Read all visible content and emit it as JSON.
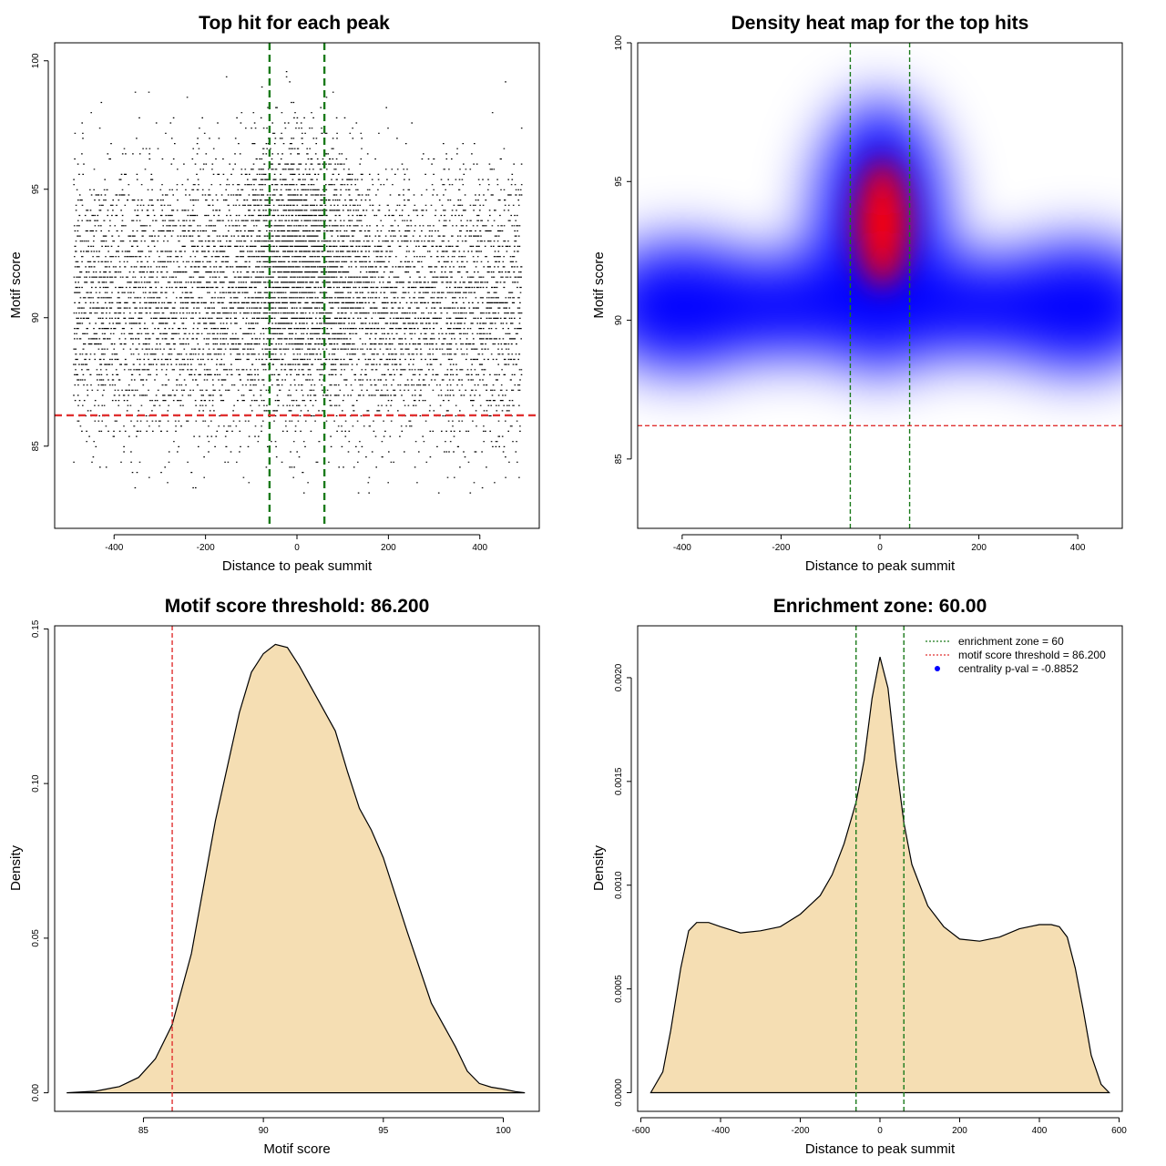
{
  "chart_data": [
    {
      "type": "scatter",
      "title": "Top hit for each peak",
      "xlabel": "Distance to peak summit",
      "ylabel": "Motif score",
      "xlim": [
        -530,
        530
      ],
      "ylim": [
        81.8,
        100.7
      ],
      "xticks": [
        -400,
        -200,
        0,
        200,
        400
      ],
      "yticks": [
        85,
        90,
        95,
        100
      ],
      "description_point_cloud": {
        "x_range": [
          -490,
          490
        ],
        "y_range": [
          82.9,
          100
        ],
        "dense_center": {
          "x": 0,
          "y": 92.7
        },
        "band_center_y": 90.5
      },
      "hlines": [
        {
          "y": 86.2,
          "color": "#e03030",
          "style": "dashed"
        }
      ],
      "vlines": [
        {
          "x": -60,
          "color": "#1a7a1a",
          "style": "dashed"
        },
        {
          "x": 60,
          "color": "#1a7a1a",
          "style": "dashed"
        }
      ]
    },
    {
      "type": "heatmap",
      "title": "Density heat map for the top hits",
      "xlabel": "Distance to peak summit",
      "ylabel": "Motif score",
      "xlim": [
        -490,
        490
      ],
      "ylim": [
        82.5,
        100
      ],
      "xticks": [
        -400,
        -200,
        0,
        200,
        400
      ],
      "yticks": [
        85,
        90,
        95,
        100
      ],
      "colors": [
        "#ffffff",
        "#0000ff",
        "#ff0000"
      ],
      "density_peaks": [
        {
          "x": 5,
          "y": 93.5,
          "level": "high"
        },
        {
          "x": -400,
          "y": 90.5,
          "level": "medium"
        },
        {
          "x": 400,
          "y": 90.5,
          "level": "medium"
        }
      ],
      "hlines": [
        {
          "y": 86.2,
          "color": "#e03030",
          "style": "dashed"
        }
      ],
      "vlines": [
        {
          "x": -60,
          "color": "#1a7a1a",
          "style": "dashed"
        },
        {
          "x": 60,
          "color": "#1a7a1a",
          "style": "dashed"
        }
      ]
    },
    {
      "type": "area",
      "title": "Motif score threshold: 86.200",
      "xlabel": "Motif score",
      "ylabel": "Density",
      "xlim": [
        81.3,
        101.5
      ],
      "ylim": [
        -0.006,
        0.151
      ],
      "xticks": [
        85,
        90,
        95,
        100
      ],
      "yticks": [
        0.0,
        0.05,
        0.1,
        0.15
      ],
      "ytick_labels": [
        "0.00",
        "0.05",
        "0.10",
        "0.15"
      ],
      "x": [
        81.8,
        83,
        84,
        84.8,
        85.5,
        86.2,
        87,
        88,
        89,
        89.5,
        90,
        90.5,
        91,
        91.5,
        92,
        93,
        93.5,
        94,
        94.5,
        95,
        96,
        97,
        98,
        98.5,
        99,
        99.5,
        100,
        100.5,
        100.9
      ],
      "y": [
        0.0,
        0.0005,
        0.002,
        0.005,
        0.011,
        0.022,
        0.045,
        0.088,
        0.123,
        0.136,
        0.142,
        0.145,
        0.144,
        0.138,
        0.131,
        0.117,
        0.104,
        0.092,
        0.085,
        0.076,
        0.052,
        0.029,
        0.015,
        0.007,
        0.003,
        0.0018,
        0.0012,
        0.0004,
        0.0
      ],
      "fill": "#f5deb3",
      "vlines": [
        {
          "x": 86.2,
          "color": "#e03030",
          "style": "dashed"
        }
      ]
    },
    {
      "type": "area",
      "title": "Enrichment zone: 60.00",
      "xlabel": "Distance to peak summit",
      "ylabel": "Density",
      "xlim": [
        -608,
        608
      ],
      "ylim": [
        -9e-05,
        0.00225
      ],
      "xticks": [
        -600,
        -400,
        -200,
        0,
        200,
        400,
        600
      ],
      "yticks": [
        0.0,
        0.0005,
        0.001,
        0.0015,
        0.002
      ],
      "ytick_labels": [
        "0.0000",
        "0.0005",
        "0.0010",
        "0.0015",
        "0.0020"
      ],
      "x": [
        -575,
        -545,
        -525,
        -500,
        -480,
        -460,
        -430,
        -400,
        -350,
        -300,
        -250,
        -200,
        -150,
        -120,
        -90,
        -60,
        -40,
        -20,
        0,
        20,
        40,
        60,
        80,
        120,
        160,
        200,
        250,
        300,
        350,
        400,
        430,
        450,
        470,
        490,
        510,
        530,
        555,
        575
      ],
      "y": [
        0.0,
        0.0001,
        0.0003,
        0.0006,
        0.00078,
        0.00082,
        0.00082,
        0.0008,
        0.00077,
        0.00078,
        0.0008,
        0.00086,
        0.00095,
        0.00105,
        0.0012,
        0.0014,
        0.0016,
        0.0019,
        0.0021,
        0.00195,
        0.0016,
        0.0013,
        0.0011,
        0.0009,
        0.0008,
        0.00074,
        0.00073,
        0.00075,
        0.00079,
        0.00081,
        0.00081,
        0.0008,
        0.00075,
        0.0006,
        0.0004,
        0.00018,
        4e-05,
        0.0
      ],
      "fill": "#f5deb3",
      "vlines": [
        {
          "x": -60,
          "color": "#1a7a1a",
          "style": "dashed"
        },
        {
          "x": 60,
          "color": "#1a7a1a",
          "style": "dashed"
        }
      ],
      "legend": {
        "placement": "top-right",
        "entries": [
          {
            "label": "enrichment zone = 60",
            "color": "#1a7a1a",
            "marker": "dotted-line"
          },
          {
            "label": "motif score threshold = 86.200",
            "color": "#e03030",
            "marker": "dotted-line"
          },
          {
            "label": "centrality p-val = -0.8852",
            "color": "#0000ff",
            "marker": "dot"
          }
        ]
      }
    }
  ]
}
